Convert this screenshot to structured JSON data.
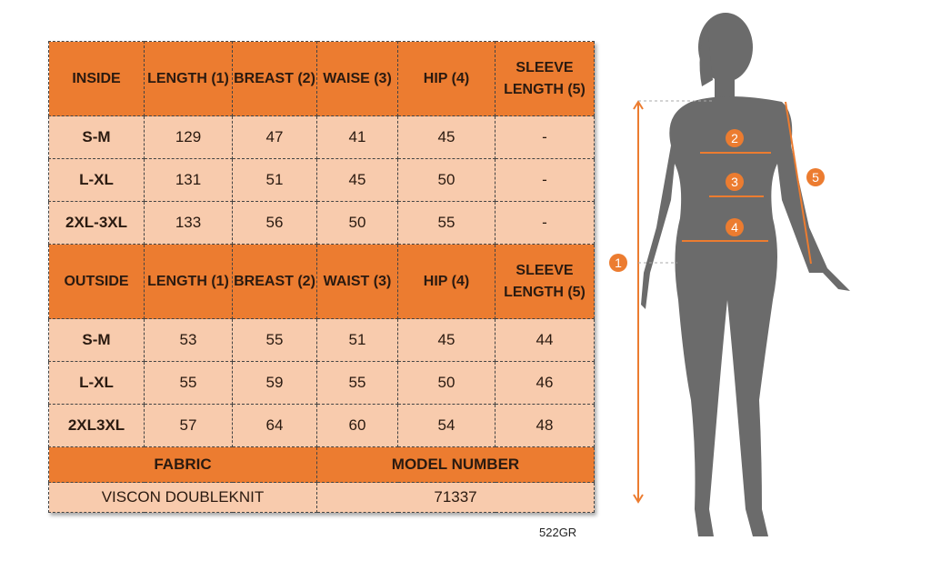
{
  "inside": {
    "header": [
      "INSIDE",
      "LENGTH (1)",
      "BREAST (2)",
      "WAISE (3)",
      "HIP (4)",
      "SLEEVE LENGTH (5)"
    ],
    "rows": [
      [
        "S-M",
        "129",
        "47",
        "41",
        "45",
        "-"
      ],
      [
        "L-XL",
        "131",
        "51",
        "45",
        "50",
        "-"
      ],
      [
        "2XL-3XL",
        "133",
        "56",
        "50",
        "55",
        "-"
      ]
    ]
  },
  "outside": {
    "header": [
      "OUTSIDE",
      "LENGTH (1)",
      "BREAST (2)",
      "WAIST (3)",
      "HIP (4)",
      "SLEEVE LENGTH (5)"
    ],
    "rows": [
      [
        "S-M",
        "53",
        "55",
        "51",
        "45",
        "44"
      ],
      [
        "L-XL",
        "55",
        "59",
        "55",
        "50",
        "46"
      ],
      [
        "2XL3XL",
        "57",
        "64",
        "60",
        "54",
        "48"
      ]
    ]
  },
  "fabric": {
    "label": "FABRIC",
    "value": "VISCON DOUBLEKNIT"
  },
  "model": {
    "label": "MODEL NUMBER",
    "value": "71337"
  },
  "code": "522GR",
  "figure": {
    "markers": [
      "1",
      "2",
      "3",
      "4",
      "5"
    ],
    "accent": "#ec7c30",
    "silhouette": "#6b6b6b"
  }
}
